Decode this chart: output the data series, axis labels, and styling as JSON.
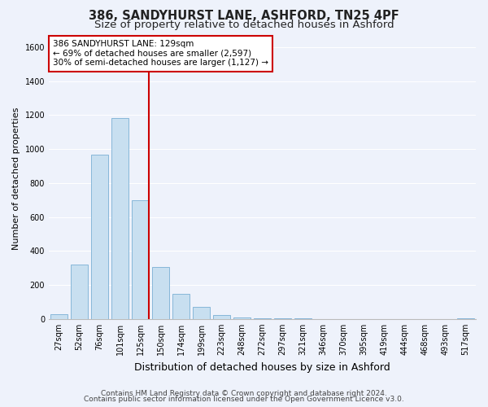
{
  "title": "386, SANDYHURST LANE, ASHFORD, TN25 4PF",
  "subtitle": "Size of property relative to detached houses in Ashford",
  "xlabel": "Distribution of detached houses by size in Ashford",
  "ylabel": "Number of detached properties",
  "bar_labels": [
    "27sqm",
    "52sqm",
    "76sqm",
    "101sqm",
    "125sqm",
    "150sqm",
    "174sqm",
    "199sqm",
    "223sqm",
    "248sqm",
    "272sqm",
    "297sqm",
    "321sqm",
    "346sqm",
    "370sqm",
    "395sqm",
    "419sqm",
    "444sqm",
    "468sqm",
    "493sqm",
    "517sqm"
  ],
  "bar_values": [
    30,
    320,
    965,
    1185,
    700,
    305,
    150,
    70,
    25,
    10,
    5,
    5,
    2,
    1,
    1,
    1,
    0,
    0,
    0,
    0,
    5
  ],
  "bar_color": "#c8dff0",
  "bar_edge_color": "#7aafd4",
  "vline_index": 4,
  "vline_color": "#cc0000",
  "ylim": [
    0,
    1650
  ],
  "yticks": [
    0,
    200,
    400,
    600,
    800,
    1000,
    1200,
    1400,
    1600
  ],
  "annotation_line1": "386 SANDYHURST LANE: 129sqm",
  "annotation_line2": "← 69% of detached houses are smaller (2,597)",
  "annotation_line3": "30% of semi-detached houses are larger (1,127) →",
  "annotation_box_color": "#ffffff",
  "annotation_box_edge": "#cc0000",
  "footer_line1": "Contains HM Land Registry data © Crown copyright and database right 2024.",
  "footer_line2": "Contains public sector information licensed under the Open Government Licence v3.0.",
  "bg_color": "#eef2fb",
  "plot_bg_color": "#eef2fb",
  "grid_color": "#ffffff",
  "title_fontsize": 10.5,
  "subtitle_fontsize": 9.5,
  "xlabel_fontsize": 9,
  "ylabel_fontsize": 8,
  "tick_fontsize": 7,
  "annotation_fontsize": 7.5,
  "footer_fontsize": 6.5
}
